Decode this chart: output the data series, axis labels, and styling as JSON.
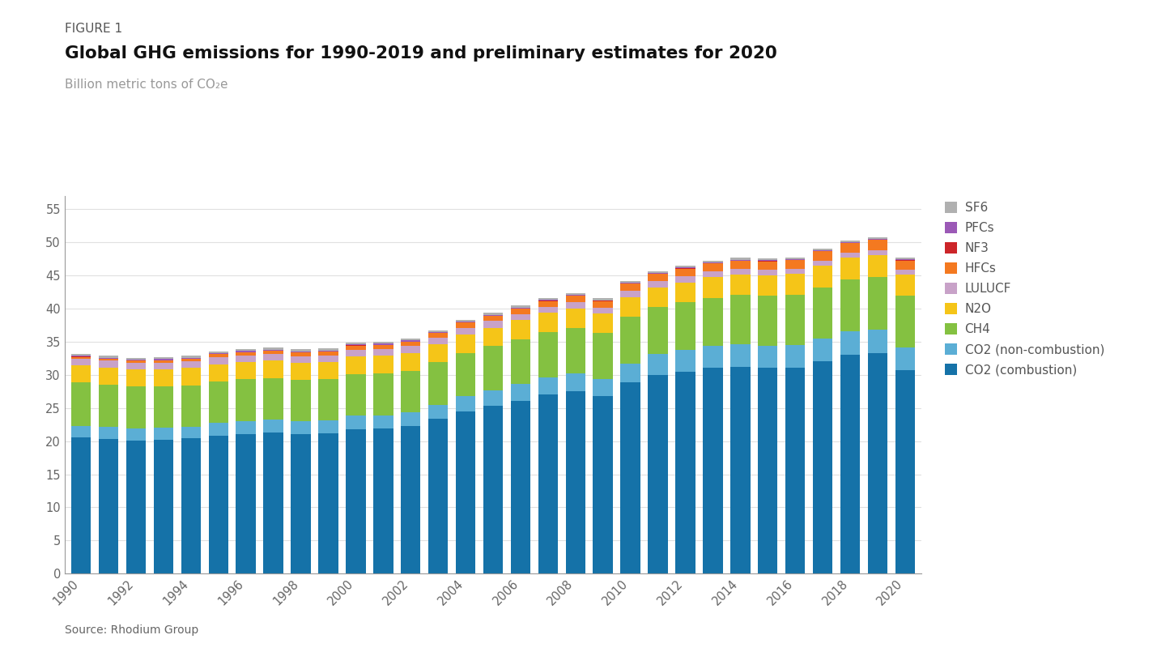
{
  "years": [
    1990,
    1991,
    1992,
    1993,
    1994,
    1995,
    1996,
    1997,
    1998,
    1999,
    2000,
    2001,
    2002,
    2003,
    2004,
    2005,
    2006,
    2007,
    2008,
    2009,
    2010,
    2011,
    2012,
    2013,
    2014,
    2015,
    2016,
    2017,
    2018,
    2019,
    2020
  ],
  "co2_combustion": [
    20.5,
    20.3,
    20.1,
    20.2,
    20.4,
    20.8,
    21.1,
    21.3,
    21.1,
    21.2,
    21.8,
    21.9,
    22.3,
    23.4,
    24.5,
    25.3,
    26.1,
    27.0,
    27.5,
    26.8,
    28.8,
    30.0,
    30.5,
    31.0,
    31.2,
    31.0,
    31.1,
    32.0,
    33.0,
    33.2,
    30.7
  ],
  "co2_noncombustion": [
    1.8,
    1.8,
    1.8,
    1.8,
    1.8,
    1.9,
    1.9,
    1.9,
    1.9,
    1.9,
    2.0,
    2.0,
    2.0,
    2.1,
    2.3,
    2.4,
    2.5,
    2.6,
    2.7,
    2.6,
    2.9,
    3.1,
    3.2,
    3.3,
    3.4,
    3.4,
    3.4,
    3.5,
    3.6,
    3.6,
    3.4
  ],
  "ch4": [
    6.5,
    6.4,
    6.3,
    6.2,
    6.2,
    6.3,
    6.3,
    6.3,
    6.2,
    6.2,
    6.3,
    6.3,
    6.3,
    6.4,
    6.5,
    6.6,
    6.7,
    6.8,
    6.9,
    6.9,
    7.0,
    7.1,
    7.2,
    7.3,
    7.4,
    7.5,
    7.6,
    7.7,
    7.8,
    7.9,
    7.8
  ],
  "n2o": [
    2.6,
    2.6,
    2.6,
    2.6,
    2.6,
    2.6,
    2.6,
    2.6,
    2.6,
    2.6,
    2.7,
    2.7,
    2.7,
    2.7,
    2.8,
    2.8,
    2.9,
    2.9,
    2.9,
    2.9,
    3.0,
    3.0,
    3.0,
    3.1,
    3.1,
    3.1,
    3.1,
    3.2,
    3.2,
    3.3,
    3.2
  ],
  "lulucf": [
    1.0,
    1.0,
    1.0,
    1.0,
    1.0,
    1.0,
    1.0,
    1.0,
    1.0,
    1.0,
    1.0,
    1.0,
    1.0,
    1.0,
    1.0,
    1.0,
    0.9,
    0.9,
    0.9,
    0.9,
    0.9,
    0.9,
    0.9,
    0.9,
    0.8,
    0.8,
    0.8,
    0.8,
    0.8,
    0.8,
    0.7
  ],
  "hfcs": [
    0.3,
    0.3,
    0.3,
    0.4,
    0.4,
    0.5,
    0.5,
    0.5,
    0.6,
    0.6,
    0.6,
    0.6,
    0.7,
    0.7,
    0.8,
    0.8,
    0.9,
    0.9,
    1.0,
    1.0,
    1.1,
    1.1,
    1.2,
    1.2,
    1.3,
    1.3,
    1.3,
    1.4,
    1.4,
    1.5,
    1.4
  ],
  "nf3": [
    0.01,
    0.01,
    0.01,
    0.01,
    0.01,
    0.01,
    0.02,
    0.02,
    0.02,
    0.02,
    0.02,
    0.02,
    0.02,
    0.02,
    0.02,
    0.02,
    0.02,
    0.03,
    0.03,
    0.03,
    0.03,
    0.03,
    0.03,
    0.03,
    0.03,
    0.03,
    0.03,
    0.04,
    0.04,
    0.04,
    0.04
  ],
  "pfcs": [
    0.15,
    0.15,
    0.15,
    0.15,
    0.15,
    0.15,
    0.15,
    0.15,
    0.14,
    0.14,
    0.14,
    0.14,
    0.14,
    0.13,
    0.13,
    0.13,
    0.13,
    0.13,
    0.13,
    0.12,
    0.12,
    0.12,
    0.12,
    0.12,
    0.12,
    0.12,
    0.12,
    0.12,
    0.13,
    0.13,
    0.13
  ],
  "sf6": [
    0.3,
    0.3,
    0.3,
    0.29,
    0.29,
    0.29,
    0.29,
    0.28,
    0.28,
    0.28,
    0.27,
    0.27,
    0.27,
    0.27,
    0.27,
    0.27,
    0.27,
    0.27,
    0.27,
    0.27,
    0.27,
    0.27,
    0.27,
    0.27,
    0.27,
    0.27,
    0.27,
    0.27,
    0.27,
    0.27,
    0.27
  ],
  "colors": {
    "co2_combustion": "#1572a8",
    "co2_noncombustion": "#5baed5",
    "ch4": "#84c141",
    "n2o": "#f5c518",
    "lulucf": "#c8a2c8",
    "hfcs": "#f47920",
    "nf3": "#cc2529",
    "pfcs": "#9b59b6",
    "sf6": "#b0b0b0"
  },
  "figure_label": "FIGURE 1",
  "title": "Global GHG emissions for 1990-2019 and preliminary estimates for 2020",
  "subtitle": "Billion metric tons of CO₂e",
  "source": "Source: Rhodium Group",
  "ylim": [
    0,
    57
  ],
  "yticks": [
    0,
    5,
    10,
    15,
    20,
    25,
    30,
    35,
    40,
    45,
    50,
    55
  ],
  "background_color": "#ffffff"
}
